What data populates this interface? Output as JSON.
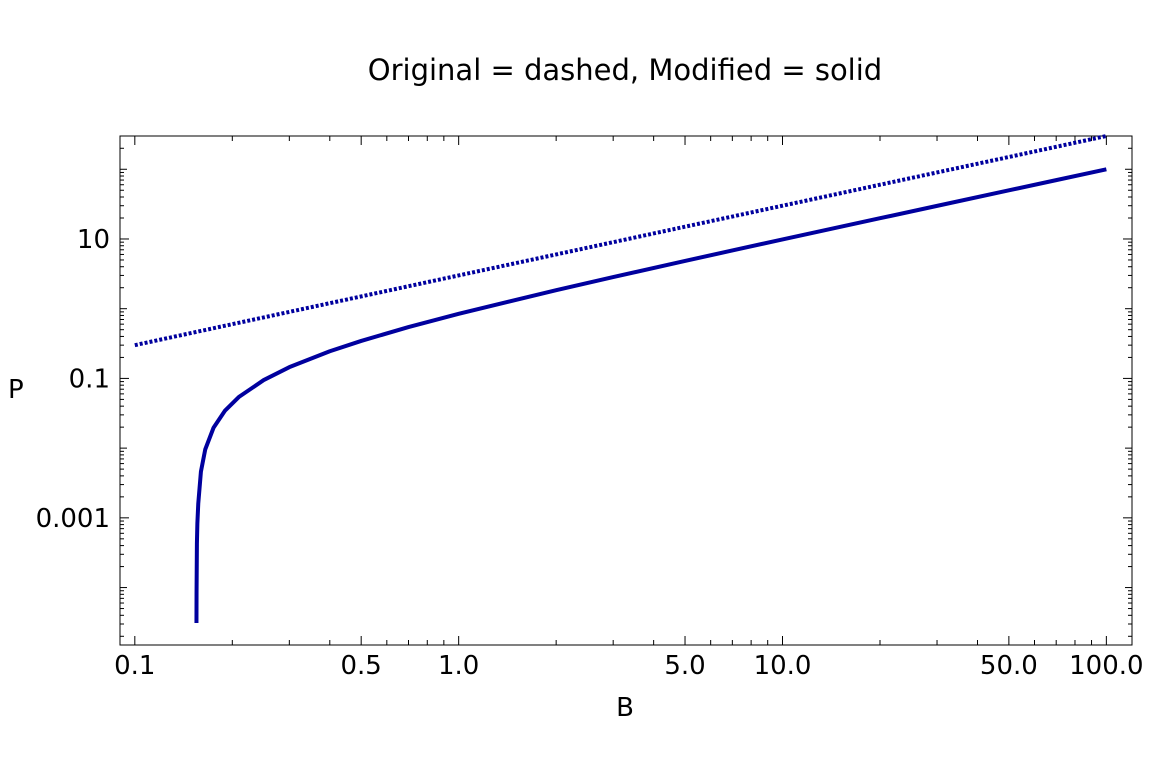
{
  "chart_data": {
    "type": "line",
    "title": "Original = dashed, Modified = solid",
    "xlabel": "B",
    "ylabel": "P",
    "x_scale": "log",
    "y_scale": "log",
    "xlim": [
      0.09,
      120
    ],
    "ylim": [
      1.5e-05,
      300
    ],
    "x_ticks": [
      {
        "value": 0.1,
        "label": "0.1"
      },
      {
        "value": 0.5,
        "label": "0.5"
      },
      {
        "value": 1.0,
        "label": "1.0"
      },
      {
        "value": 5.0,
        "label": "5.0"
      },
      {
        "value": 10.0,
        "label": "10.0"
      },
      {
        "value": 50.0,
        "label": "50.0"
      },
      {
        "value": 100.0,
        "label": "100.0"
      }
    ],
    "y_ticks": [
      {
        "value": 10,
        "label": "10"
      },
      {
        "value": 0.1,
        "label": "0.1"
      },
      {
        "value": 0.001,
        "label": "0.001"
      }
    ],
    "grid": false,
    "series": [
      {
        "style": "dashed",
        "color": "#00009e",
        "x": [
          0.1,
          0.2,
          0.3,
          0.5,
          0.7,
          1,
          2,
          3,
          5,
          7,
          10,
          20,
          30,
          50,
          70,
          100
        ],
        "y": [
          0.3,
          0.6,
          0.9,
          1.5,
          2.1,
          3,
          6,
          9,
          15,
          21,
          30,
          60,
          90,
          150,
          210,
          300
        ]
      },
      {
        "style": "solid",
        "color": "#00009e",
        "x": [
          0.155,
          0.1551,
          0.1555,
          0.156,
          0.157,
          0.16,
          0.165,
          0.175,
          0.19,
          0.21,
          0.25,
          0.3,
          0.4,
          0.5,
          0.7,
          1,
          2,
          3,
          5,
          7,
          10,
          20,
          30,
          50,
          70,
          100
        ],
        "y": [
          3.1e-05,
          8.5e-05,
          0.00043,
          0.00083,
          0.0016,
          0.0046,
          0.0096,
          0.0196,
          0.0346,
          0.0546,
          0.0946,
          0.145,
          0.245,
          0.345,
          0.545,
          0.845,
          1.845,
          2.845,
          4.845,
          6.845,
          9.845,
          19.845,
          29.845,
          49.845,
          69.845,
          99.845
        ]
      }
    ]
  }
}
